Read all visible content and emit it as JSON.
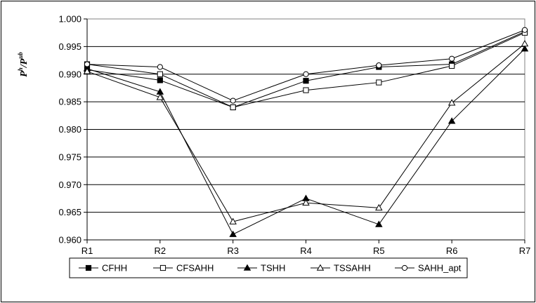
{
  "chart_data": {
    "type": "line",
    "categories": [
      "R1",
      "R2",
      "R3",
      "R4",
      "R5",
      "R6",
      "R7"
    ],
    "ylabel": {
      "base1": "P",
      "sup1": "h",
      "sep": "/P",
      "sup2": "ub"
    },
    "ylim": [
      0.96,
      1.0
    ],
    "yticks": [
      "0.960",
      "0.965",
      "0.970",
      "0.975",
      "0.980",
      "0.985",
      "0.990",
      "0.995",
      "1.000"
    ],
    "grid": true,
    "legend_position": "bottom",
    "series": [
      {
        "name": "CFHH",
        "marker": "square-filled",
        "values": [
          0.9908,
          0.9889,
          0.984,
          0.9888,
          0.9913,
          0.9918,
          0.9977
        ]
      },
      {
        "name": "CFSAHH",
        "marker": "square-open",
        "values": [
          0.9918,
          0.99,
          0.984,
          0.9871,
          0.9885,
          0.9915,
          0.9975
        ]
      },
      {
        "name": "TSHH",
        "marker": "triangle-filled",
        "values": [
          0.991,
          0.9868,
          0.961,
          0.9675,
          0.9628,
          0.9815,
          0.9946
        ]
      },
      {
        "name": "TSSAHH",
        "marker": "triangle-open",
        "values": [
          0.9905,
          0.9858,
          0.9633,
          0.9667,
          0.9658,
          0.9848,
          0.9955
        ]
      },
      {
        "name": "SAHH_apt",
        "marker": "circle-open",
        "values": [
          0.9918,
          0.9913,
          0.9852,
          0.99,
          0.9916,
          0.9928,
          0.998
        ]
      }
    ]
  }
}
